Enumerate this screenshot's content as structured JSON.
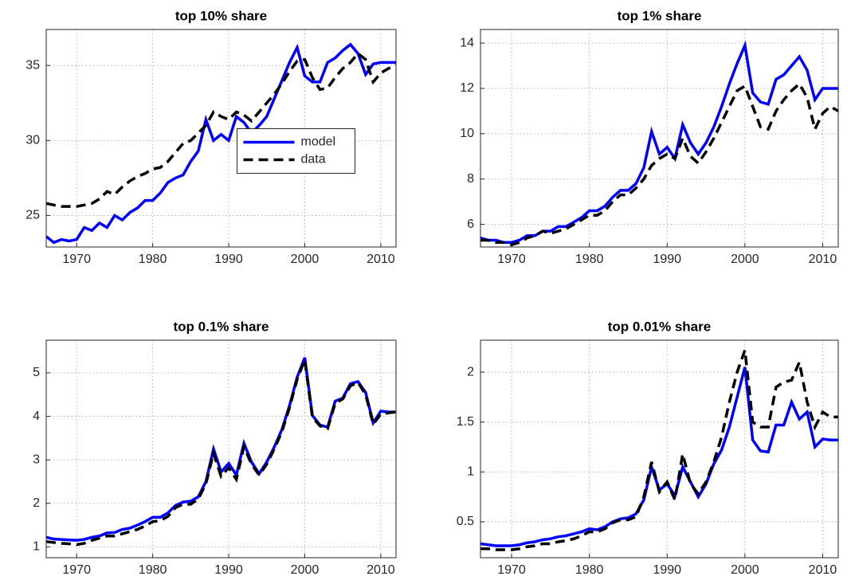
{
  "chart_data": [
    {
      "type": "line",
      "title": "top 10% share",
      "x": [
        1966,
        1967,
        1968,
        1969,
        1970,
        1971,
        1972,
        1973,
        1974,
        1975,
        1976,
        1977,
        1978,
        1979,
        1980,
        1981,
        1982,
        1983,
        1984,
        1985,
        1986,
        1987,
        1988,
        1989,
        1990,
        1991,
        1992,
        1993,
        1994,
        1995,
        1996,
        1997,
        1998,
        1999,
        2000,
        2001,
        2002,
        2003,
        2004,
        2005,
        2006,
        2007,
        2008,
        2009,
        2010,
        2011,
        2012
      ],
      "series": [
        {
          "name": "model",
          "color": "#0000ff",
          "style": "solid",
          "values": [
            23.6,
            23.2,
            23.4,
            23.3,
            23.4,
            24.2,
            24.0,
            24.5,
            24.2,
            25.0,
            24.7,
            25.2,
            25.5,
            26.0,
            26.0,
            26.5,
            27.2,
            27.5,
            27.7,
            28.6,
            29.3,
            31.4,
            30.0,
            30.4,
            30.0,
            31.6,
            31.2,
            30.5,
            31.0,
            31.6,
            32.8,
            34.0,
            35.2,
            36.2,
            34.3,
            33.9,
            33.9,
            35.2,
            35.5,
            36.0,
            36.4,
            35.8,
            34.4,
            35.1,
            35.2,
            35.2,
            35.2
          ]
        },
        {
          "name": "data",
          "color": "#000000",
          "style": "dashed",
          "values": [
            25.8,
            25.7,
            25.6,
            25.6,
            25.6,
            25.7,
            25.8,
            26.1,
            26.6,
            26.4,
            26.9,
            27.3,
            27.6,
            27.8,
            28.1,
            28.2,
            28.6,
            29.2,
            29.8,
            30.0,
            30.5,
            31.0,
            31.9,
            31.6,
            31.4,
            31.9,
            31.7,
            31.3,
            31.9,
            32.5,
            33.1,
            33.8,
            34.6,
            35.3,
            35.4,
            34.2,
            33.4,
            33.5,
            34.2,
            34.8,
            35.2,
            35.8,
            35.4,
            33.9,
            34.5,
            34.8,
            35.0
          ]
        }
      ],
      "xlim": [
        1966,
        2012
      ],
      "xticks": [
        1970,
        1980,
        1990,
        2000,
        2010
      ],
      "ylim": [
        22.9,
        37.4
      ],
      "yticks": [
        25,
        30,
        35
      ],
      "grid": true,
      "legend": "center"
    },
    {
      "type": "line",
      "title": "top 1% share",
      "x": [
        1966,
        1967,
        1968,
        1969,
        1970,
        1971,
        1972,
        1973,
        1974,
        1975,
        1976,
        1977,
        1978,
        1979,
        1980,
        1981,
        1982,
        1983,
        1984,
        1985,
        1986,
        1987,
        1988,
        1989,
        1990,
        1991,
        1992,
        1993,
        1994,
        1995,
        1996,
        1997,
        1998,
        1999,
        2000,
        2001,
        2002,
        2003,
        2004,
        2005,
        2006,
        2007,
        2008,
        2009,
        2010,
        2011,
        2012
      ],
      "series": [
        {
          "color": "#0000ff",
          "style": "solid",
          "values": [
            5.4,
            5.3,
            5.3,
            5.2,
            5.2,
            5.3,
            5.5,
            5.5,
            5.7,
            5.7,
            5.9,
            5.9,
            6.1,
            6.3,
            6.6,
            6.6,
            6.8,
            7.2,
            7.5,
            7.5,
            7.8,
            8.5,
            10.1,
            9.1,
            9.4,
            8.9,
            10.4,
            9.6,
            9.1,
            9.6,
            10.3,
            11.2,
            12.2,
            13.1,
            13.9,
            11.8,
            11.4,
            11.3,
            12.4,
            12.6,
            13.0,
            13.4,
            12.8,
            11.5,
            12.0,
            12.0,
            12.0
          ]
        },
        {
          "color": "#000000",
          "style": "dashed",
          "values": [
            5.3,
            5.3,
            5.2,
            5.2,
            5.1,
            5.2,
            5.4,
            5.5,
            5.7,
            5.6,
            5.7,
            5.8,
            6.0,
            6.2,
            6.4,
            6.4,
            6.6,
            7.0,
            7.3,
            7.3,
            7.6,
            8.0,
            8.6,
            8.9,
            9.1,
            8.9,
            9.8,
            9.0,
            8.7,
            9.2,
            9.8,
            10.5,
            11.2,
            11.9,
            12.1,
            11.2,
            10.3,
            10.2,
            11.0,
            11.5,
            11.9,
            12.2,
            11.6,
            10.2,
            10.9,
            11.2,
            11.0
          ]
        }
      ],
      "xlim": [
        1966,
        2012
      ],
      "xticks": [
        1970,
        1980,
        1990,
        2000,
        2010
      ],
      "ylim": [
        5.0,
        14.6
      ],
      "yticks": [
        6,
        8,
        10,
        12,
        14
      ],
      "grid": true
    },
    {
      "type": "line",
      "title": "top 0.1% share",
      "x": [
        1966,
        1967,
        1968,
        1969,
        1970,
        1971,
        1972,
        1973,
        1974,
        1975,
        1976,
        1977,
        1978,
        1979,
        1980,
        1981,
        1982,
        1983,
        1984,
        1985,
        1986,
        1987,
        1988,
        1989,
        1990,
        1991,
        1992,
        1993,
        1994,
        1995,
        1996,
        1997,
        1998,
        1999,
        2000,
        2001,
        2002,
        2003,
        2004,
        2005,
        2006,
        2007,
        2008,
        2009,
        2010,
        2011,
        2012
      ],
      "series": [
        {
          "color": "#0000ff",
          "style": "solid",
          "values": [
            1.22,
            1.18,
            1.17,
            1.16,
            1.15,
            1.17,
            1.22,
            1.25,
            1.32,
            1.33,
            1.4,
            1.43,
            1.5,
            1.58,
            1.68,
            1.68,
            1.78,
            1.95,
            2.03,
            2.05,
            2.15,
            2.5,
            3.25,
            2.72,
            2.92,
            2.65,
            3.38,
            2.95,
            2.68,
            2.95,
            3.3,
            3.7,
            4.25,
            4.9,
            5.35,
            4.02,
            3.8,
            3.75,
            4.35,
            4.42,
            4.75,
            4.8,
            4.55,
            3.85,
            4.12,
            4.1,
            4.1
          ]
        },
        {
          "color": "#000000",
          "style": "dashed",
          "values": [
            1.12,
            1.1,
            1.08,
            1.07,
            1.05,
            1.08,
            1.15,
            1.2,
            1.25,
            1.25,
            1.3,
            1.35,
            1.4,
            1.48,
            1.58,
            1.6,
            1.7,
            1.9,
            1.98,
            1.98,
            2.1,
            2.45,
            3.15,
            2.62,
            2.82,
            2.55,
            3.3,
            2.9,
            2.65,
            2.9,
            3.25,
            3.65,
            4.2,
            4.85,
            5.3,
            3.98,
            3.78,
            3.72,
            4.3,
            4.4,
            4.7,
            4.78,
            4.5,
            3.82,
            4.05,
            4.08,
            4.1
          ]
        }
      ],
      "xlim": [
        1966,
        2012
      ],
      "xticks": [
        1970,
        1980,
        1990,
        2000,
        2010
      ],
      "ylim": [
        0.75,
        5.75
      ],
      "yticks": [
        1,
        2,
        3,
        4,
        5
      ],
      "grid": true
    },
    {
      "type": "line",
      "title": "top 0.01% share",
      "x": [
        1966,
        1967,
        1968,
        1969,
        1970,
        1971,
        1972,
        1973,
        1974,
        1975,
        1976,
        1977,
        1978,
        1979,
        1980,
        1981,
        1982,
        1983,
        1984,
        1985,
        1986,
        1987,
        1988,
        1989,
        1990,
        1991,
        1992,
        1993,
        1994,
        1995,
        1996,
        1997,
        1998,
        1999,
        2000,
        2001,
        2002,
        2003,
        2004,
        2005,
        2006,
        2007,
        2008,
        2009,
        2010,
        2011,
        2012
      ],
      "series": [
        {
          "color": "#0000ff",
          "style": "solid",
          "values": [
            0.28,
            0.27,
            0.26,
            0.26,
            0.26,
            0.27,
            0.29,
            0.3,
            0.32,
            0.33,
            0.35,
            0.36,
            0.38,
            0.4,
            0.43,
            0.42,
            0.45,
            0.5,
            0.53,
            0.54,
            0.58,
            0.72,
            1.05,
            0.82,
            0.88,
            0.76,
            1.05,
            0.9,
            0.75,
            0.88,
            1.08,
            1.22,
            1.45,
            1.75,
            2.05,
            1.32,
            1.21,
            1.2,
            1.47,
            1.47,
            1.7,
            1.53,
            1.6,
            1.25,
            1.33,
            1.32,
            1.32
          ]
        },
        {
          "color": "#000000",
          "style": "dashed",
          "values": [
            0.23,
            0.23,
            0.22,
            0.22,
            0.22,
            0.23,
            0.25,
            0.26,
            0.28,
            0.28,
            0.3,
            0.31,
            0.33,
            0.36,
            0.4,
            0.4,
            0.43,
            0.49,
            0.52,
            0.52,
            0.55,
            0.75,
            1.1,
            0.8,
            0.9,
            0.72,
            1.18,
            0.88,
            0.78,
            0.9,
            1.1,
            1.35,
            1.7,
            2.0,
            2.22,
            1.5,
            1.45,
            1.45,
            1.85,
            1.9,
            1.92,
            2.1,
            1.7,
            1.45,
            1.6,
            1.55,
            1.55
          ]
        }
      ],
      "xlim": [
        1966,
        2012
      ],
      "xticks": [
        1970,
        1980,
        1990,
        2000,
        2010
      ],
      "ylim": [
        0.14,
        2.32
      ],
      "yticks": [
        0.5,
        1,
        1.5,
        2
      ],
      "grid": true
    }
  ]
}
